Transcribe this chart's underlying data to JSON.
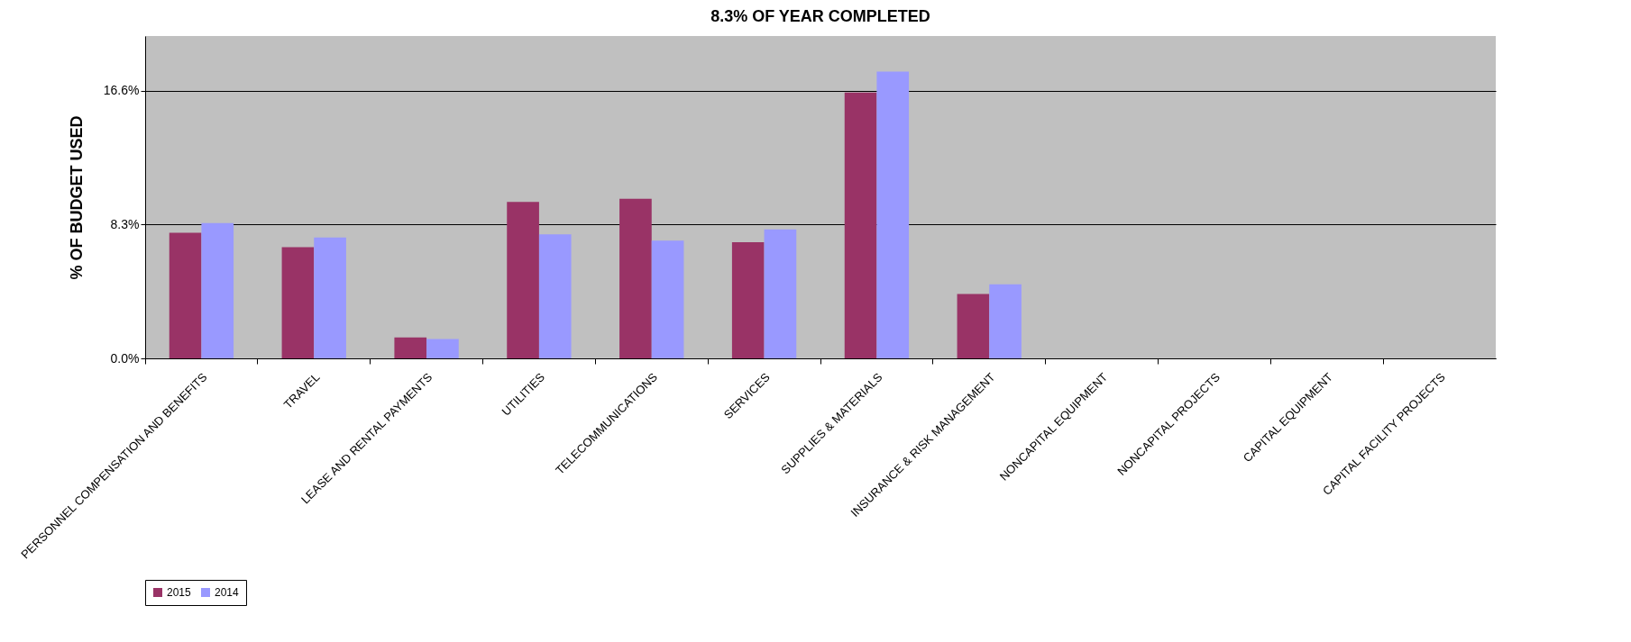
{
  "chart_data": {
    "type": "bar",
    "title": "8.3% OF YEAR COMPLETED",
    "ylabel": "% OF BUDGET USED",
    "categories": [
      "PERSONNEL COMPENSATION AND BENEFITS",
      "TRAVEL",
      "LEASE AND RENTAL PAYMENTS",
      "UTILITIES",
      "TELECOMMUNICATIONS",
      "SERVICES",
      "SUPPLIES & MATERIALS",
      "INSURANCE & RISK MANAGEMENT",
      "NONCAPITAL EQUIPMENT",
      "NONCAPITAL PROJECTS",
      "CAPITAL EQUIPMENT",
      "CAPITAL FACILITY PROJECTS"
    ],
    "series": [
      {
        "name": "2015",
        "color": "#993366",
        "values": [
          7.8,
          6.9,
          1.3,
          9.7,
          9.9,
          7.2,
          16.5,
          4.0,
          0,
          0,
          0,
          0
        ]
      },
      {
        "name": "2014",
        "color": "#9999ff",
        "values": [
          8.4,
          7.5,
          1.2,
          7.7,
          7.3,
          8.0,
          17.8,
          4.6,
          0,
          0,
          0,
          0
        ]
      }
    ],
    "ylim": [
      0,
      20
    ],
    "yticks": [
      {
        "value": 0,
        "label": "0.0%"
      },
      {
        "value": 8.3,
        "label": "8.3%"
      },
      {
        "value": 16.6,
        "label": "16.6%"
      }
    ],
    "grid": "y",
    "legend": "bottom"
  }
}
